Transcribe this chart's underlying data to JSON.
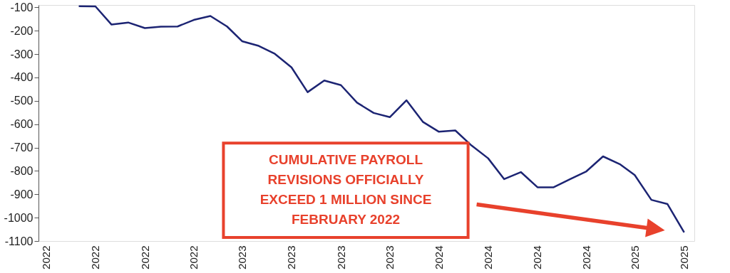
{
  "chart_data": {
    "type": "line",
    "x": [
      "2022-05",
      "2022-06",
      "2022-07",
      "2022-08",
      "2022-09",
      "2022-10",
      "2022-11",
      "2022-12",
      "2023-01",
      "2023-02",
      "2023-03",
      "2023-04",
      "2023-05",
      "2023-06",
      "2023-07",
      "2023-08",
      "2023-09",
      "2023-10",
      "2023-11",
      "2023-12",
      "2024-01",
      "2024-02",
      "2024-03",
      "2024-04",
      "2024-05",
      "2024-06",
      "2024-07",
      "2024-08",
      "2024-09",
      "2024-10",
      "2024-11",
      "2024-12",
      "2025-01",
      "2025-02",
      "2025-03",
      "2025-04",
      "2025-05",
      "2025-06"
    ],
    "series": [
      {
        "color": "#1c2473",
        "values": [
          -95,
          -96,
          -174,
          -165,
          -189,
          -183,
          -182,
          -154,
          -137,
          -182,
          -245,
          -265,
          -299,
          -357,
          -463,
          -413,
          -433,
          -508,
          -552,
          -570,
          -498,
          -591,
          -632,
          -627,
          -691,
          -746,
          -835,
          -805,
          -870,
          -870,
          -835,
          -802,
          -738,
          -771,
          -818,
          -924,
          -942,
          -1063
        ]
      }
    ],
    "xlim": [
      "2022-02-15",
      "2025-06-20"
    ],
    "xticks": [
      {
        "value": "2022-03",
        "label": "2022"
      },
      {
        "value": "2022-06",
        "label": "2022"
      },
      {
        "value": "2022-09",
        "label": "2022"
      },
      {
        "value": "2022-12",
        "label": "2022"
      },
      {
        "value": "2023-03",
        "label": "2023"
      },
      {
        "value": "2023-06",
        "label": "2023"
      },
      {
        "value": "2023-09",
        "label": "2023"
      },
      {
        "value": "2023-12",
        "label": "2023"
      },
      {
        "value": "2024-03",
        "label": "2024"
      },
      {
        "value": "2024-06",
        "label": "2024"
      },
      {
        "value": "2024-09",
        "label": "2024"
      },
      {
        "value": "2024-12",
        "label": "2024"
      },
      {
        "value": "2025-03",
        "label": "2025"
      },
      {
        "value": "2025-06",
        "label": "2025"
      }
    ],
    "ylim": [
      -1100,
      -90
    ],
    "yticks": [
      -100,
      -200,
      -300,
      -400,
      -500,
      -600,
      -700,
      -800,
      -900,
      -1000,
      -1100
    ],
    "grid": false,
    "legend": false,
    "marker": "none",
    "line_style": "solid",
    "annotations": [
      "CUMULATIVE PAYROLL\nREVISIONS OFFICIALLY\nEXCEED 1 MILLION SINCE\nFEBRUARY 2022"
    ]
  }
}
